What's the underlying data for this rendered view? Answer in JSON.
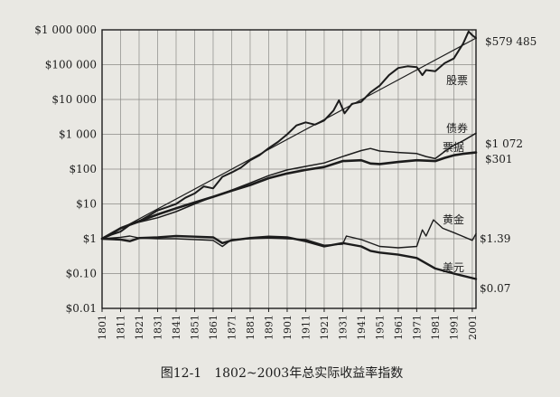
{
  "caption": "图12-1　1802~2003年总实际收益率指数",
  "chart_data": {
    "type": "line",
    "scale": "log",
    "grid": true,
    "legend": "inline labels at right",
    "xlim": [
      1801,
      2003
    ],
    "ylim": [
      0.01,
      1000000
    ],
    "y_ticks": [
      {
        "value": 1000000,
        "label": "$1 000 000"
      },
      {
        "value": 100000,
        "label": "$100 000"
      },
      {
        "value": 10000,
        "label": "$10 000"
      },
      {
        "value": 1000,
        "label": "$1 000"
      },
      {
        "value": 100,
        "label": "$100"
      },
      {
        "value": 10,
        "label": "$10"
      },
      {
        "value": 1,
        "label": "$1"
      },
      {
        "value": 0.1,
        "label": "$0.10"
      },
      {
        "value": 0.01,
        "label": "$0.01"
      }
    ],
    "x_ticks": [
      "1801",
      "1811",
      "1821",
      "1831",
      "1841",
      "1851",
      "1861",
      "1871",
      "1881",
      "1891",
      "1901",
      "1911",
      "1921",
      "1931",
      "1941",
      "1951",
      "1961",
      "1971",
      "1981",
      "1991",
      "2001"
    ],
    "series": [
      {
        "name": "股票",
        "end_label": "$579 485",
        "color": "#1c1c1c",
        "width": 2.0,
        "x": [
          1801,
          1806,
          1811,
          1816,
          1821,
          1826,
          1831,
          1836,
          1841,
          1846,
          1851,
          1856,
          1861,
          1866,
          1871,
          1876,
          1881,
          1886,
          1891,
          1896,
          1901,
          1906,
          1911,
          1916,
          1921,
          1926,
          1929,
          1932,
          1936,
          1941,
          1946,
          1951,
          1956,
          1961,
          1966,
          1971,
          1974,
          1976,
          1981,
          1986,
          1991,
          1996,
          1999,
          2001,
          2003
        ],
        "y": [
          1,
          1.3,
          1.6,
          2.5,
          3.2,
          4.5,
          6.5,
          8,
          10,
          15,
          20,
          32,
          28,
          60,
          80,
          110,
          180,
          250,
          400,
          600,
          1000,
          1800,
          2200,
          1900,
          2500,
          4800,
          9500,
          4000,
          7500,
          8500,
          16000,
          25000,
          50000,
          80000,
          90000,
          85000,
          50000,
          70000,
          65000,
          110000,
          150000,
          400000,
          900000,
          700000,
          579485
        ]
      },
      {
        "name": "债券",
        "end_label": "$1 072",
        "color": "#1c1c1c",
        "width": 1.5,
        "x": [
          1801,
          1811,
          1821,
          1831,
          1841,
          1851,
          1861,
          1871,
          1881,
          1891,
          1901,
          1911,
          1921,
          1931,
          1941,
          1946,
          1951,
          1961,
          1971,
          1976,
          1981,
          1986,
          1991,
          1996,
          2003
        ],
        "y": [
          1,
          2,
          3,
          4,
          6,
          10,
          16,
          25,
          40,
          65,
          95,
          120,
          150,
          230,
          340,
          390,
          330,
          300,
          280,
          230,
          200,
          320,
          480,
          650,
          1072
        ]
      },
      {
        "name": "票据",
        "end_label": "$301",
        "color": "#1c1c1c",
        "width": 2.6,
        "x": [
          1801,
          1811,
          1821,
          1831,
          1841,
          1851,
          1861,
          1871,
          1881,
          1891,
          1901,
          1911,
          1921,
          1931,
          1941,
          1946,
          1951,
          1961,
          1971,
          1981,
          1986,
          1991,
          1996,
          2003
        ],
        "y": [
          1,
          2,
          3.2,
          5,
          7.5,
          11,
          16,
          24,
          35,
          55,
          75,
          95,
          115,
          170,
          180,
          145,
          140,
          160,
          180,
          170,
          210,
          250,
          275,
          301
        ]
      },
      {
        "name": "黄金",
        "end_label": "$1.39",
        "color": "#1c1c1c",
        "width": 1.4,
        "x": [
          1801,
          1811,
          1816,
          1821,
          1831,
          1841,
          1851,
          1861,
          1866,
          1871,
          1881,
          1891,
          1901,
          1911,
          1921,
          1931,
          1933,
          1941,
          1951,
          1961,
          1971,
          1974,
          1976,
          1980,
          1985,
          1991,
          2001,
          2003
        ],
        "y": [
          1,
          1.1,
          1.2,
          1.05,
          1.0,
          1.0,
          0.95,
          0.9,
          0.6,
          0.95,
          1.0,
          1.05,
          1.0,
          0.95,
          0.65,
          0.7,
          1.2,
          0.95,
          0.6,
          0.55,
          0.6,
          1.8,
          1.2,
          3.5,
          2.0,
          1.5,
          0.9,
          1.39
        ]
      },
      {
        "name": "美元",
        "end_label": "$0.07",
        "color": "#1c1c1c",
        "width": 2.4,
        "x": [
          1801,
          1811,
          1816,
          1821,
          1831,
          1841,
          1851,
          1861,
          1866,
          1871,
          1881,
          1891,
          1901,
          1911,
          1921,
          1931,
          1941,
          1946,
          1951,
          1961,
          1971,
          1981,
          1991,
          2003
        ],
        "y": [
          1,
          0.95,
          0.85,
          1.05,
          1.1,
          1.2,
          1.15,
          1.1,
          0.75,
          0.9,
          1.05,
          1.15,
          1.1,
          0.85,
          0.6,
          0.75,
          0.6,
          0.45,
          0.4,
          0.35,
          0.28,
          0.14,
          0.1,
          0.07
        ]
      }
    ]
  }
}
